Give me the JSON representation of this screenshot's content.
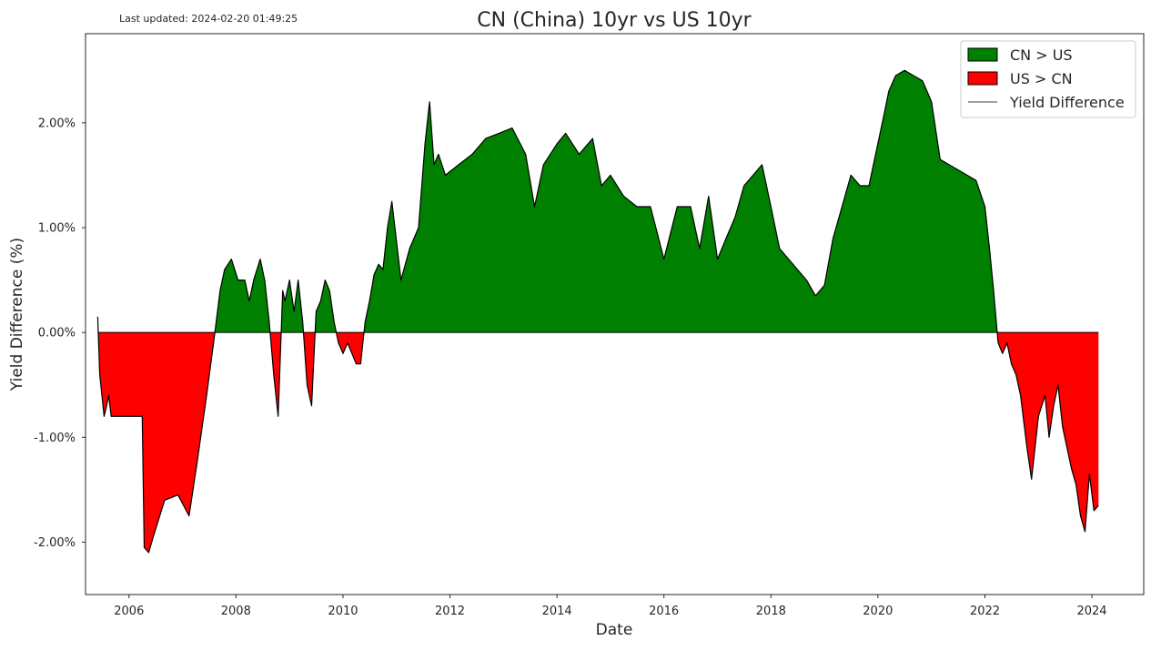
{
  "header": {
    "last_updated": "Last updated: 2024-02-20 01:49:25"
  },
  "colors": {
    "positive_fill": "#008000",
    "negative_fill": "#ff0000",
    "line": "#000000",
    "frame": "#262626"
  },
  "chart_data": {
    "type": "area",
    "title": "CN (China) 10yr vs US 10yr",
    "xlabel": "Date",
    "ylabel": "Yield Difference (%)",
    "xlim": [
      "2005-03-10",
      "2024-12-20"
    ],
    "ylim": [
      -2.5,
      2.85
    ],
    "y_ticks": [
      -2.0,
      -1.0,
      0.0,
      1.0,
      2.0
    ],
    "y_tick_labels": [
      "-2.00%",
      "-1.00%",
      "0.00%",
      "1.00%",
      "2.00%"
    ],
    "x_ticks": [
      "2006",
      "2008",
      "2010",
      "2012",
      "2014",
      "2016",
      "2018",
      "2020",
      "2022",
      "2024"
    ],
    "grid": false,
    "legend": {
      "placement": "top-right",
      "entries": [
        "CN > US",
        "US > CN",
        "Yield Difference"
      ]
    },
    "series": [
      {
        "name": "Yield Difference",
        "x": [
          "2005-06-01",
          "2005-06-15",
          "2005-07-15",
          "2005-08-01",
          "2005-08-15",
          "2005-09-01",
          "2005-10-01",
          "2006-01-01",
          "2006-04-01",
          "2006-04-15",
          "2006-05-15",
          "2006-06-15",
          "2006-09-01",
          "2006-12-01",
          "2007-02-15",
          "2007-04-15",
          "2007-06-15",
          "2007-08-01",
          "2007-09-15",
          "2007-10-15",
          "2007-12-01",
          "2008-01-15",
          "2008-03-01",
          "2008-04-01",
          "2008-05-01",
          "2008-06-15",
          "2008-07-15",
          "2008-08-15",
          "2008-09-15",
          "2008-10-15",
          "2008-11-15",
          "2008-12-01",
          "2009-01-01",
          "2009-02-01",
          "2009-03-01",
          "2009-04-01",
          "2009-05-01",
          "2009-06-01",
          "2009-07-01",
          "2009-08-01",
          "2009-09-01",
          "2009-10-01",
          "2009-11-01",
          "2009-12-01",
          "2010-01-01",
          "2010-02-01",
          "2010-04-01",
          "2010-05-01",
          "2010-06-01",
          "2010-07-01",
          "2010-08-01",
          "2010-09-01",
          "2010-10-01",
          "2010-11-01",
          "2010-12-01",
          "2011-02-01",
          "2011-04-01",
          "2011-06-01",
          "2011-07-15",
          "2011-08-15",
          "2011-09-15",
          "2011-10-15",
          "2011-12-01",
          "2012-03-01",
          "2012-06-01",
          "2012-09-01",
          "2012-12-01",
          "2013-03-01",
          "2013-06-01",
          "2013-08-01",
          "2013-10-01",
          "2014-01-01",
          "2014-03-01",
          "2014-06-01",
          "2014-09-01",
          "2014-11-01",
          "2015-01-01",
          "2015-04-01",
          "2015-07-01",
          "2015-10-01",
          "2016-01-01",
          "2016-04-01",
          "2016-07-01",
          "2016-09-01",
          "2016-11-01",
          "2017-01-01",
          "2017-03-01",
          "2017-05-01",
          "2017-07-01",
          "2017-09-01",
          "2017-11-01",
          "2018-01-01",
          "2018-03-01",
          "2018-05-01",
          "2018-07-01",
          "2018-09-01",
          "2018-11-01",
          "2019-01-01",
          "2019-03-01",
          "2019-05-01",
          "2019-07-01",
          "2019-09-01",
          "2019-11-01",
          "2020-01-01",
          "2020-02-15",
          "2020-03-15",
          "2020-05-01",
          "2020-07-01",
          "2020-09-01",
          "2020-11-01",
          "2021-01-01",
          "2021-03-01",
          "2021-05-01",
          "2021-07-01",
          "2021-09-01",
          "2021-11-01",
          "2022-01-01",
          "2022-02-01",
          "2022-03-01",
          "2022-04-01",
          "2022-05-01",
          "2022-06-01",
          "2022-07-01",
          "2022-08-01",
          "2022-09-01",
          "2022-10-15",
          "2022-11-15",
          "2023-01-01",
          "2023-02-15",
          "2023-03-15",
          "2023-04-15",
          "2023-05-15",
          "2023-06-15",
          "2023-07-15",
          "2023-08-15",
          "2023-09-15",
          "2023-10-15",
          "2023-11-15",
          "2023-12-15",
          "2024-01-15",
          "2024-02-15"
        ],
        "values": [
          0.15,
          -0.4,
          -0.8,
          -0.7,
          -0.6,
          -0.8,
          -0.8,
          -0.8,
          -0.8,
          -2.05,
          -2.1,
          -1.95,
          -1.6,
          -1.55,
          -1.75,
          -1.2,
          -0.6,
          -0.1,
          0.4,
          0.6,
          0.7,
          0.5,
          0.5,
          0.3,
          0.5,
          0.7,
          0.5,
          0.1,
          -0.4,
          -0.8,
          0.4,
          0.3,
          0.5,
          0.2,
          0.5,
          0.1,
          -0.5,
          -0.7,
          0.2,
          0.3,
          0.5,
          0.4,
          0.1,
          -0.1,
          -0.2,
          -0.1,
          -0.3,
          -0.3,
          0.1,
          0.3,
          0.55,
          0.65,
          0.6,
          1.0,
          1.25,
          0.5,
          0.8,
          1.0,
          1.8,
          2.2,
          1.6,
          1.7,
          1.5,
          1.6,
          1.7,
          1.85,
          1.9,
          1.95,
          1.7,
          1.2,
          1.6,
          1.8,
          1.9,
          1.7,
          1.85,
          1.4,
          1.5,
          1.3,
          1.2,
          1.2,
          0.7,
          1.2,
          1.2,
          0.8,
          1.3,
          0.7,
          0.9,
          1.1,
          1.4,
          1.5,
          1.6,
          1.2,
          0.8,
          0.7,
          0.6,
          0.5,
          0.35,
          0.45,
          0.9,
          1.2,
          1.5,
          1.4,
          1.4,
          1.8,
          2.1,
          2.3,
          2.45,
          2.5,
          2.45,
          2.4,
          2.2,
          1.65,
          1.6,
          1.55,
          1.5,
          1.45,
          1.2,
          0.8,
          0.4,
          -0.1,
          -0.2,
          -0.1,
          -0.3,
          -0.4,
          -0.6,
          -1.1,
          -1.4,
          -0.8,
          -0.6,
          -1.0,
          -0.7,
          -0.5,
          -0.9,
          -1.1,
          -1.3,
          -1.45,
          -1.75,
          -1.9,
          -1.35,
          -1.7,
          -1.65
        ]
      }
    ]
  }
}
